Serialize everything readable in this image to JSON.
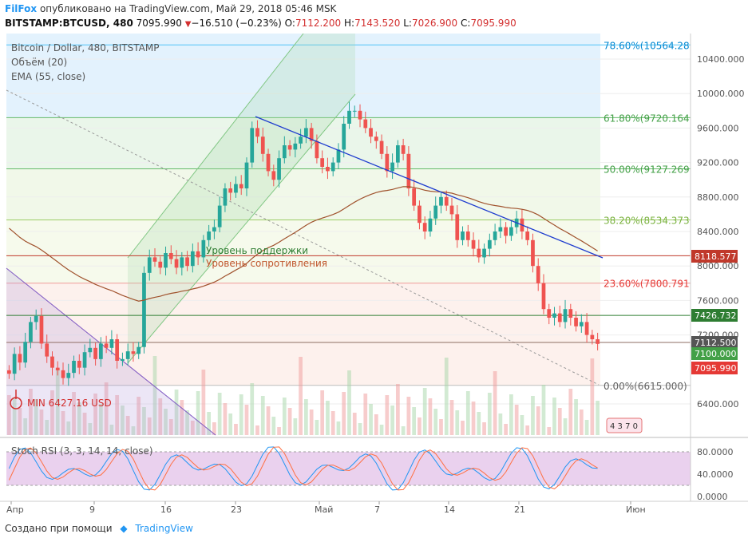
{
  "header": {
    "brand": "FilFox",
    "published": "опубликовано на TradingView.com, Май 29, 2018 05:46 MSK",
    "symbol": "BITSTAMP:BTCUSD, 480",
    "last": "7095.990",
    "change": "−16.510 (−0.23%)",
    "o_label": "O:",
    "o": "7112.200",
    "h_label": "H:",
    "h": "7143.520",
    "l_label": "L:",
    "l": "7026.900",
    "c_label": "C:",
    "c": "7095.990"
  },
  "legend": {
    "title": "Bitcoin / Dollar, 480, BITSTAMP",
    "volume": "Объём (20)",
    "ema": "EMA (55, close)",
    "rsi": "Stoch RSI (3, 3, 14, 14, close)"
  },
  "annotations": {
    "support": "Уровень поддержки",
    "resistance": "Уровень сопротивления",
    "min": "MIN 6427.16 USD"
  },
  "footer": {
    "created": "Создано при помощи",
    "brand": "TradingView"
  },
  "chart_data": {
    "type": "candlestick",
    "y_axis_price": [
      "10400.000",
      "10000.000",
      "9600.000",
      "9200.000",
      "8800.000",
      "8400.000",
      "8000.000",
      "7600.000",
      "7200.000",
      "6400.000"
    ],
    "y_axis_rsi": [
      "80.0000",
      "40.0000",
      "0.0000"
    ],
    "x_labels": [
      "Апр",
      "9",
      "16",
      "23",
      "Май",
      "7",
      "14",
      "21",
      "Июн"
    ],
    "fib_levels": [
      {
        "label": "78.60%(10564.28",
        "price": 10564.28,
        "fill": "#e3f2fd"
      },
      {
        "label": "61.80%(9720.164",
        "price": 9720.164,
        "fill": "#eaf6ea"
      },
      {
        "label": "50.00%(9127.269",
        "price": 9127.269,
        "fill": "#f1f8e9"
      },
      {
        "label": "38.20%(8534.373",
        "price": 8534.373,
        "fill": "#f6faec"
      },
      {
        "label": "23.60%(7800.791",
        "price": 7800.791,
        "fill": "#fdf1ed"
      },
      {
        "label": "0.00%(6615.000)",
        "price": 6615.0,
        "fill": "#fdeceb"
      }
    ],
    "price_tags": [
      {
        "text": "8118.577",
        "price": 8118.577,
        "color": "#c0392b"
      },
      {
        "text": "7426.732",
        "price": 7426.732,
        "color": "#2e7d32"
      },
      {
        "text": "7112.500",
        "price": 7112.5,
        "color": "#555555"
      },
      {
        "text": "7100.000",
        "price": 7100.0,
        "color": "#43a047"
      },
      {
        "text": "7095.990",
        "price": 7095.99,
        "color": "#e53935"
      }
    ],
    "close_series": [
      6750,
      6980,
      6880,
      7120,
      7350,
      7420,
      7100,
      6950,
      6820,
      6790,
      6700,
      6760,
      6900,
      6820,
      7000,
      7050,
      6920,
      7100,
      7050,
      7150,
      6900,
      6920,
      7010,
      6980,
      7060,
      7920,
      8100,
      8050,
      7980,
      8150,
      8080,
      7980,
      8100,
      8000,
      8170,
      8100,
      8300,
      8400,
      8450,
      8700,
      8900,
      8850,
      8950,
      8900,
      9200,
      9600,
      9500,
      9300,
      9100,
      9000,
      9250,
      9400,
      9350,
      9420,
      9500,
      9600,
      9450,
      9250,
      9150,
      9100,
      9200,
      9350,
      9650,
      9800,
      9800,
      9700,
      9600,
      9500,
      9450,
      9300,
      9100,
      9200,
      9400,
      9300,
      8900,
      8700,
      8500,
      8400,
      8550,
      8700,
      8800,
      8700,
      8600,
      8300,
      8400,
      8300,
      8200,
      8100,
      8200,
      8300,
      8400,
      8450,
      8350,
      8450,
      8550,
      8400,
      8300,
      8000,
      7800,
      7500,
      7400,
      7450,
      7350,
      7500,
      7400,
      7300,
      7350,
      7200,
      7150,
      7096
    ]
  }
}
